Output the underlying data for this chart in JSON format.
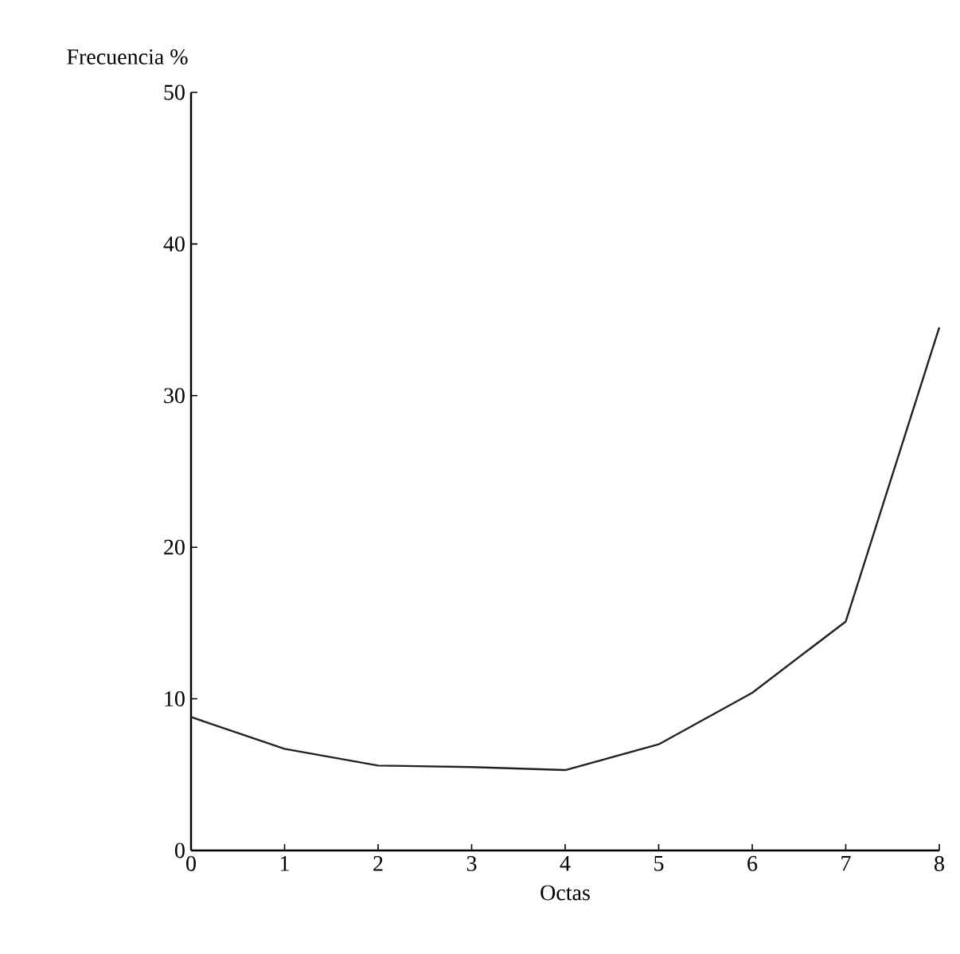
{
  "chart_data": {
    "type": "line",
    "ylabel": "Frecuencia %",
    "xlabel": "Octas",
    "x": [
      0,
      1,
      2,
      3,
      4,
      5,
      6,
      7,
      8
    ],
    "values": [
      8.8,
      6.7,
      5.6,
      5.5,
      5.3,
      7.0,
      10.4,
      15.1,
      34.5
    ],
    "color": "#222222",
    "xlim": [
      0,
      8
    ],
    "ylim": [
      0,
      50
    ],
    "xticks": [
      0,
      1,
      2,
      3,
      4,
      5,
      6,
      7,
      8
    ],
    "yticks": [
      0,
      10,
      20,
      30,
      40,
      50
    ],
    "marker": "none",
    "line_style": "solid"
  }
}
